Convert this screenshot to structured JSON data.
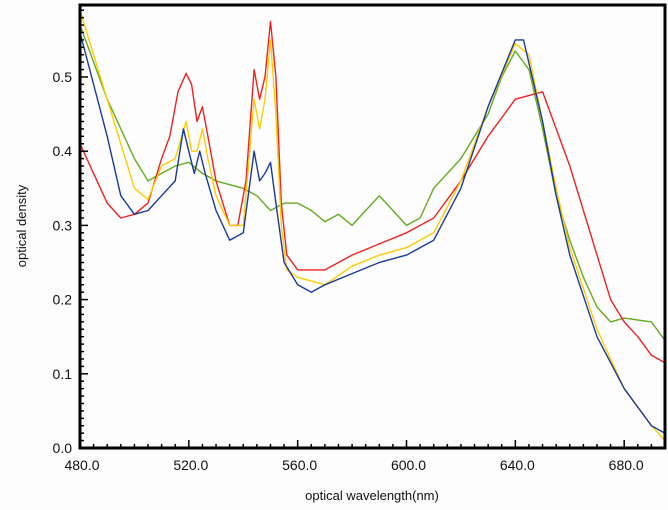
{
  "chart_data": {
    "type": "line",
    "title": "",
    "xlabel": "optical wavelength(nm)",
    "ylabel": "optical density",
    "xlim": [
      480,
      695
    ],
    "ylim": [
      0,
      0.597
    ],
    "x_ticks": [
      480,
      520,
      560,
      600,
      640,
      680
    ],
    "x_tick_labels": [
      "480.0",
      "520.0",
      "560.0",
      "600.0",
      "640.0",
      "680.0"
    ],
    "y_ticks": [
      0,
      0.1,
      0.2,
      0.3,
      0.4,
      0.5
    ],
    "y_tick_labels": [
      "0.0",
      "0.1",
      "0.2",
      "0.3",
      "0.4",
      "0.5"
    ],
    "grid": false,
    "legend": "none",
    "series": [
      {
        "name": "green",
        "color": "#66aa22",
        "x": [
          480,
          490,
          500,
          505,
          510,
          515,
          520,
          525,
          530,
          540,
          545,
          550,
          555,
          560,
          565,
          570,
          575,
          580,
          585,
          590,
          595,
          600,
          605,
          610,
          620,
          630,
          635,
          640,
          645,
          650,
          655,
          660,
          665,
          670,
          675,
          680,
          690,
          695
        ],
        "y": [
          0.57,
          0.47,
          0.39,
          0.36,
          0.37,
          0.38,
          0.385,
          0.37,
          0.36,
          0.35,
          0.34,
          0.32,
          0.33,
          0.33,
          0.32,
          0.305,
          0.315,
          0.3,
          0.32,
          0.34,
          0.32,
          0.3,
          0.31,
          0.35,
          0.39,
          0.45,
          0.5,
          0.535,
          0.51,
          0.43,
          0.34,
          0.28,
          0.23,
          0.19,
          0.17,
          0.175,
          0.17,
          0.145
        ]
      },
      {
        "name": "red",
        "color": "#ee2222",
        "x": [
          480,
          485,
          490,
          495,
          500,
          505,
          510,
          513,
          516,
          519,
          521,
          523,
          525,
          527,
          530,
          535,
          538,
          541,
          544,
          546,
          548,
          550,
          552,
          554,
          556,
          560,
          570,
          580,
          590,
          600,
          610,
          620,
          630,
          640,
          650,
          655,
          660,
          665,
          670,
          675,
          680,
          685,
          690,
          695
        ],
        "y": [
          0.41,
          0.37,
          0.33,
          0.31,
          0.315,
          0.33,
          0.39,
          0.42,
          0.48,
          0.505,
          0.49,
          0.44,
          0.46,
          0.42,
          0.36,
          0.3,
          0.3,
          0.36,
          0.51,
          0.47,
          0.5,
          0.575,
          0.5,
          0.33,
          0.26,
          0.24,
          0.24,
          0.26,
          0.275,
          0.29,
          0.31,
          0.36,
          0.42,
          0.47,
          0.48,
          0.43,
          0.38,
          0.32,
          0.26,
          0.2,
          0.17,
          0.15,
          0.125,
          0.115
        ]
      },
      {
        "name": "yellow",
        "color": "#ffcc00",
        "x": [
          480,
          490,
          500,
          505,
          510,
          515,
          519,
          521,
          523,
          525,
          527,
          530,
          535,
          540,
          544,
          546,
          548,
          550,
          552,
          554,
          556,
          560,
          570,
          580,
          590,
          600,
          610,
          620,
          630,
          640,
          645,
          650,
          655,
          660,
          670,
          680,
          690,
          695
        ],
        "y": [
          0.59,
          0.47,
          0.35,
          0.335,
          0.38,
          0.39,
          0.44,
          0.4,
          0.4,
          0.43,
          0.39,
          0.34,
          0.3,
          0.3,
          0.47,
          0.43,
          0.47,
          0.55,
          0.45,
          0.3,
          0.24,
          0.23,
          0.22,
          0.245,
          0.26,
          0.27,
          0.29,
          0.36,
          0.46,
          0.545,
          0.53,
          0.44,
          0.35,
          0.27,
          0.16,
          0.08,
          0.03,
          0.01
        ]
      },
      {
        "name": "blue",
        "color": "#1a3a99",
        "x": [
          480,
          490,
          495,
          500,
          505,
          510,
          515,
          518,
          520,
          522,
          524,
          526,
          530,
          535,
          540,
          544,
          546,
          548,
          550,
          552,
          555,
          560,
          565,
          570,
          580,
          590,
          600,
          610,
          620,
          630,
          640,
          643,
          650,
          655,
          660,
          670,
          680,
          690,
          695
        ],
        "y": [
          0.56,
          0.42,
          0.34,
          0.315,
          0.32,
          0.34,
          0.36,
          0.43,
          0.4,
          0.37,
          0.4,
          0.37,
          0.32,
          0.28,
          0.29,
          0.4,
          0.36,
          0.37,
          0.385,
          0.33,
          0.25,
          0.22,
          0.21,
          0.22,
          0.235,
          0.25,
          0.26,
          0.28,
          0.35,
          0.46,
          0.55,
          0.55,
          0.44,
          0.34,
          0.26,
          0.15,
          0.08,
          0.03,
          0.02
        ]
      }
    ]
  }
}
